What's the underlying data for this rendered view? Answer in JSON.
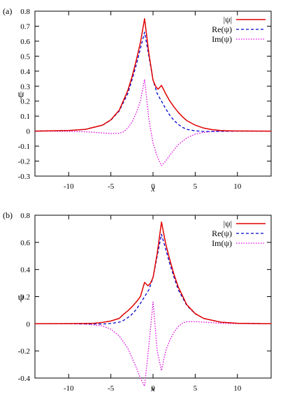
{
  "chart_data": [
    {
      "panel_label": "(a)",
      "type": "line",
      "xlabel": "x",
      "ylabel": "ψ",
      "xlim": [
        -14,
        14
      ],
      "ylim": [
        -0.3,
        0.8
      ],
      "xticks": [
        "-10",
        "-5",
        "0",
        "5",
        "10"
      ],
      "xtick_values": [
        -10,
        -5,
        0,
        5,
        10
      ],
      "yticks": [
        "-0.3",
        "-0.2",
        "-0.1",
        "0",
        "0.1",
        "0.2",
        "0.3",
        "0.4",
        "0.5",
        "0.6",
        "0.7",
        "0.8"
      ],
      "ytick_values": [
        -0.3,
        -0.2,
        -0.1,
        0,
        0.1,
        0.2,
        0.3,
        0.4,
        0.5,
        0.6,
        0.7,
        0.8
      ],
      "legend_position": "top-right",
      "series": [
        {
          "name": "|ψ|",
          "color": "#e00000",
          "style": "solid",
          "x": [
            -14,
            -10,
            -8,
            -6,
            -5,
            -4,
            -3,
            -2.5,
            -2,
            -1.5,
            -1,
            -0.5,
            0,
            0.3,
            0.6,
            1,
            1.5,
            2,
            2.5,
            3,
            3.5,
            4,
            5,
            6,
            7,
            8,
            9,
            10,
            14
          ],
          "y": [
            0,
            0.004,
            0.012,
            0.04,
            0.075,
            0.14,
            0.27,
            0.36,
            0.47,
            0.59,
            0.75,
            0.52,
            0.34,
            0.3,
            0.28,
            0.305,
            0.25,
            0.2,
            0.16,
            0.125,
            0.095,
            0.07,
            0.04,
            0.02,
            0.01,
            0.004,
            0.002,
            0.001,
            0
          ]
        },
        {
          "name": "Re(ψ)",
          "color": "#0000cc",
          "style": "dashed",
          "x": [
            -14,
            -10,
            -8,
            -6,
            -5,
            -4,
            -3,
            -2.5,
            -2,
            -1.5,
            -1,
            -0.5,
            0,
            0.5,
            1,
            1.5,
            2,
            2.5,
            3,
            3.5,
            4,
            5,
            6,
            7,
            8,
            10,
            14
          ],
          "y": [
            0,
            0.004,
            0.012,
            0.04,
            0.073,
            0.135,
            0.25,
            0.34,
            0.44,
            0.55,
            0.66,
            0.5,
            0.34,
            0.25,
            0.2,
            0.15,
            0.105,
            0.07,
            0.045,
            0.025,
            0.012,
            0.002,
            -0.002,
            -0.002,
            -0.001,
            0,
            0
          ]
        },
        {
          "name": "Im(ψ)",
          "color": "#e000e0",
          "style": "dotted",
          "x": [
            -14,
            -10,
            -8,
            -6,
            -5,
            -4,
            -3.5,
            -3,
            -2.5,
            -2,
            -1.5,
            -1,
            -0.5,
            0,
            0.5,
            1,
            1.5,
            2,
            3,
            4,
            5,
            6,
            7,
            8,
            10,
            14
          ],
          "y": [
            0,
            -0.001,
            -0.004,
            -0.012,
            -0.016,
            -0.014,
            -0.005,
            0.02,
            0.06,
            0.12,
            0.2,
            0.345,
            0.08,
            -0.08,
            -0.17,
            -0.23,
            -0.2,
            -0.16,
            -0.09,
            -0.045,
            -0.02,
            -0.008,
            -0.003,
            -0.001,
            0,
            0
          ]
        }
      ]
    },
    {
      "panel_label": "(b)",
      "type": "line",
      "xlabel": "x",
      "ylabel": "ψ",
      "xlim": [
        -14,
        14
      ],
      "ylim": [
        -0.4,
        0.8
      ],
      "xticks": [
        "-10",
        "-5",
        "0",
        "5",
        "10"
      ],
      "xtick_values": [
        -10,
        -5,
        0,
        5,
        10
      ],
      "yticks": [
        "-0.4",
        "-0.2",
        "0",
        "0.2",
        "0.4",
        "0.6",
        "0.8"
      ],
      "ytick_values": [
        -0.4,
        -0.2,
        0,
        0.2,
        0.4,
        0.6,
        0.8
      ],
      "legend_position": "top-right",
      "series": [
        {
          "name": "|ψ|",
          "color": "#e00000",
          "style": "solid",
          "x": [
            -14,
            -10,
            -8,
            -7,
            -6,
            -5,
            -4,
            -3.5,
            -3,
            -2.5,
            -2,
            -1.5,
            -1,
            -0.6,
            -0.3,
            0,
            0.5,
            1,
            1.5,
            2,
            2.5,
            3,
            4,
            5,
            6,
            8,
            10,
            14
          ],
          "y": [
            0,
            0.001,
            0.002,
            0.004,
            0.01,
            0.02,
            0.04,
            0.07,
            0.095,
            0.125,
            0.16,
            0.2,
            0.305,
            0.28,
            0.3,
            0.34,
            0.52,
            0.75,
            0.59,
            0.47,
            0.36,
            0.27,
            0.14,
            0.075,
            0.04,
            0.012,
            0.004,
            0
          ]
        },
        {
          "name": "Re(ψ)",
          "color": "#0000cc",
          "style": "dashed",
          "x": [
            -14,
            -10,
            -8,
            -6,
            -5,
            -4,
            -3.5,
            -3,
            -2.5,
            -2,
            -1.5,
            -1,
            -0.5,
            0,
            0.5,
            1,
            1.5,
            2,
            2.5,
            3,
            4,
            5,
            6,
            8,
            10,
            14
          ],
          "y": [
            0,
            0,
            -0.001,
            -0.002,
            0.002,
            0.012,
            0.025,
            0.045,
            0.07,
            0.105,
            0.15,
            0.2,
            0.25,
            0.34,
            0.5,
            0.66,
            0.55,
            0.44,
            0.34,
            0.25,
            0.135,
            0.073,
            0.04,
            0.012,
            0.004,
            0
          ]
        },
        {
          "name": "Im(ψ)",
          "color": "#e000e0",
          "style": "dotted",
          "x": [
            -14,
            -10,
            -8,
            -6,
            -5,
            -4,
            -3,
            -2,
            -1.5,
            -1,
            -0.5,
            0,
            0.5,
            1,
            1.5,
            2,
            2.5,
            3,
            3.5,
            4,
            5,
            6,
            7,
            8,
            10,
            14
          ],
          "y": [
            0,
            0,
            -0.002,
            -0.016,
            -0.04,
            -0.09,
            -0.18,
            -0.32,
            -0.4,
            -0.46,
            -0.16,
            0.16,
            -0.2,
            -0.345,
            -0.2,
            -0.12,
            -0.06,
            -0.02,
            0.005,
            0.015,
            0.016,
            0.012,
            0.008,
            0.004,
            0.001,
            0
          ]
        }
      ]
    }
  ]
}
